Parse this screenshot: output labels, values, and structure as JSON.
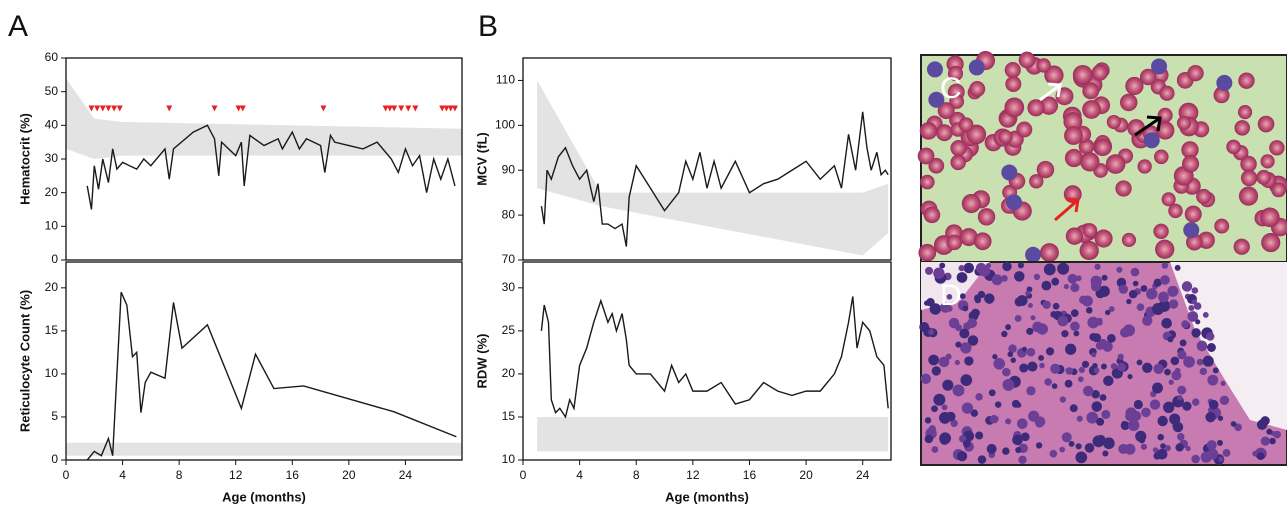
{
  "panel_labels": [
    "A",
    "B",
    "C",
    "D"
  ],
  "chart_data": [
    {
      "type": "line",
      "ylabel": "Hematocrit (%)",
      "xlim": [
        0,
        28
      ],
      "ylim": [
        0,
        60
      ],
      "yticks": [
        0,
        10,
        20,
        30,
        40,
        50,
        60
      ],
      "color": "#1a1a1a",
      "x": [
        1.5,
        1.8,
        2.0,
        2.3,
        2.6,
        3.0,
        3.3,
        3.6,
        4,
        5,
        5.5,
        6,
        7,
        7.3,
        7.6,
        9,
        10,
        10.5,
        10.8,
        11,
        12,
        12.4,
        12.6,
        13,
        14,
        15,
        15.3,
        16,
        16.5,
        17,
        18,
        18.3,
        18.7,
        19,
        20,
        21,
        22,
        23,
        23.5,
        24,
        24.5,
        25,
        25.5,
        26,
        26.5,
        27,
        27.5
      ],
      "values": [
        22,
        15,
        28,
        21,
        30,
        23,
        33,
        27,
        29,
        27,
        30,
        28,
        33,
        24,
        33,
        38,
        40,
        36,
        25,
        35,
        31,
        35,
        22,
        37,
        34,
        36,
        33,
        38,
        33,
        36,
        34,
        26,
        37,
        35,
        34,
        33,
        35,
        30,
        26,
        33,
        28,
        31,
        20,
        30,
        24,
        30,
        22
      ],
      "band": {
        "x": [
          0,
          2,
          4,
          28
        ],
        "lower": [
          33,
          30,
          31,
          31
        ],
        "upper": [
          54,
          42,
          41,
          39
        ],
        "color": "#e3e3e3"
      },
      "markers": {
        "x": [
          1.8,
          2.2,
          2.6,
          3.0,
          3.4,
          3.8,
          7.3,
          10.5,
          12.2,
          12.5,
          18.2,
          22.6,
          22.9,
          23.2,
          23.7,
          24.2,
          24.7,
          26.6,
          26.9,
          27.2,
          27.5
        ],
        "values": [
          45,
          45,
          45,
          45,
          45,
          45,
          45,
          45,
          45,
          45,
          45,
          45,
          45,
          45,
          45,
          45,
          45,
          45,
          45,
          45,
          45
        ],
        "color": "#e8201f"
      }
    },
    {
      "type": "line",
      "ylabel": "Reticulocyte Count (%)",
      "xlabel": "Age (months)",
      "xlim": [
        0,
        28
      ],
      "xticks": [
        0,
        4,
        8,
        12,
        16,
        20,
        24
      ],
      "ylim": [
        0,
        23
      ],
      "yticks": [
        0,
        5,
        10,
        15,
        20
      ],
      "color": "#1a1a1a",
      "x": [
        1.5,
        2,
        2.5,
        3,
        3.3,
        3.6,
        3.9,
        4.3,
        4.7,
        5,
        5.3,
        5.6,
        6,
        7,
        7.6,
        8.2,
        10,
        12.4,
        13.4,
        14.7,
        16.8,
        23.2,
        27.6
      ],
      "values": [
        0,
        1,
        0.5,
        2.5,
        0.5,
        10,
        19.5,
        18,
        12,
        12.5,
        5.5,
        9,
        10.2,
        9.5,
        18.3,
        13,
        15.7,
        6,
        12.3,
        8.3,
        8.6,
        5.6,
        2.7
      ],
      "band": {
        "x": [
          0,
          28
        ],
        "lower": [
          0.5,
          0.5
        ],
        "upper": [
          2,
          2
        ],
        "color": "#e3e3e3"
      }
    },
    {
      "type": "line",
      "ylabel": "MCV (fL)",
      "xlim": [
        0,
        26
      ],
      "ylim": [
        70,
        115
      ],
      "yticks": [
        70,
        80,
        90,
        100,
        110
      ],
      "color": "#1a1a1a",
      "x": [
        1.3,
        1.5,
        1.7,
        2,
        2.5,
        3,
        3.5,
        4,
        4.5,
        5,
        5.3,
        5.6,
        6,
        6.5,
        7,
        7.3,
        7.5,
        8,
        9,
        10,
        11,
        11.5,
        12,
        12.5,
        13,
        13.5,
        14,
        15,
        16,
        17,
        18,
        19,
        20,
        21,
        22,
        22.5,
        23,
        23.5,
        24,
        24.3,
        24.6,
        25,
        25.3,
        25.6,
        25.8
      ],
      "values": [
        82,
        78,
        90,
        88,
        93,
        95,
        91,
        88,
        90,
        83,
        87,
        78,
        78,
        77,
        78,
        73,
        84,
        91,
        86,
        81,
        85,
        92,
        88,
        94,
        86,
        92,
        86,
        92,
        85,
        87,
        88,
        90,
        92,
        88,
        91,
        86,
        98,
        90,
        103,
        95,
        90,
        94,
        89,
        90,
        89
      ],
      "band": {
        "x": [
          1,
          5.5,
          24,
          25.8
        ],
        "lower": [
          86,
          82,
          71,
          76
        ],
        "upper": [
          110,
          85,
          85,
          87
        ],
        "color": "#e3e3e3"
      }
    },
    {
      "type": "line",
      "ylabel": "RDW (%)",
      "xlabel": "Age (months)",
      "xlim": [
        0,
        26
      ],
      "xticks": [
        0,
        4,
        8,
        12,
        16,
        20,
        24
      ],
      "ylim": [
        10,
        33
      ],
      "yticks": [
        10,
        15,
        20,
        25,
        30
      ],
      "color": "#1a1a1a",
      "x": [
        1.3,
        1.5,
        1.8,
        2,
        2.3,
        2.6,
        3,
        3.3,
        3.6,
        4,
        4.5,
        5,
        5.5,
        6,
        6.3,
        6.6,
        7,
        7.3,
        7.5,
        8,
        9,
        10,
        10.5,
        11,
        11.5,
        12,
        13,
        14,
        15,
        16,
        17,
        18,
        19,
        20,
        21,
        22,
        22.5,
        23,
        23.3,
        23.6,
        24,
        24.5,
        25,
        25.5,
        25.8
      ],
      "values": [
        25,
        28,
        26,
        17,
        15.5,
        16,
        15,
        17,
        16,
        21,
        23,
        26,
        28.5,
        26,
        27,
        25,
        27,
        24,
        21,
        20,
        20,
        18,
        21,
        19,
        20,
        18,
        18,
        19,
        16.5,
        17,
        19,
        18,
        17.5,
        18,
        18,
        20,
        22,
        26,
        29,
        23,
        26,
        25,
        22,
        21,
        16
      ],
      "band": {
        "x": [
          1,
          25.8
        ],
        "lower": [
          11,
          11
        ],
        "upper": [
          15,
          15
        ],
        "color": "#e3e3e3"
      }
    }
  ]
}
